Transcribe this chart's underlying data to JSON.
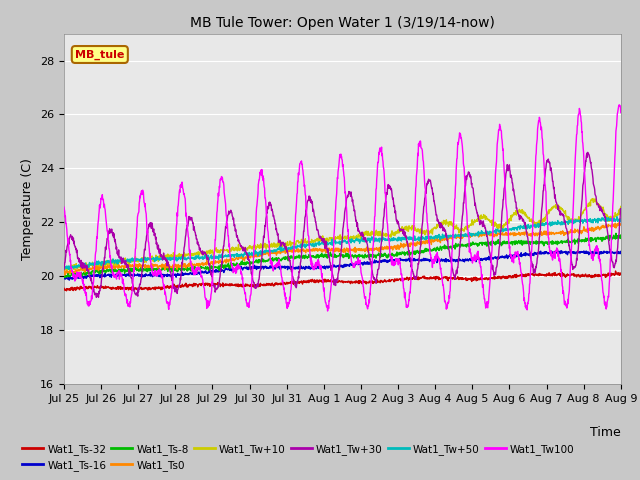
{
  "title": "MB Tule Tower: Open Water 1 (3/19/14-now)",
  "xlabel": "Time",
  "ylabel": "Temperature (C)",
  "ylim": [
    16,
    29
  ],
  "yticks": [
    16,
    18,
    20,
    22,
    24,
    26,
    28
  ],
  "legend_label": "MB_tule",
  "fig_facecolor": "#c8c8c8",
  "plot_facecolor": "#e8e8e8",
  "grid_color": "#ffffff",
  "series": {
    "Wat1_Ts-32": {
      "color": "#cc0000"
    },
    "Wat1_Ts-16": {
      "color": "#0000cc"
    },
    "Wat1_Ts-8": {
      "color": "#00bb00"
    },
    "Wat1_Ts0": {
      "color": "#ff8800"
    },
    "Wat1_Tw+10": {
      "color": "#cccc00"
    },
    "Wat1_Tw+30": {
      "color": "#aa00aa"
    },
    "Wat1_Tw+50": {
      "color": "#00bbbb"
    },
    "Wat1_Tw100": {
      "color": "#ff00ff"
    }
  },
  "xtick_labels": [
    "Jul 25",
    "Jul 26",
    "Jul 27",
    "Jul 28",
    "Jul 29",
    "Jul 30",
    "Jul 31",
    "Aug 1",
    "Aug 2",
    "Aug 3",
    "Aug 4",
    "Aug 5",
    "Aug 6",
    "Aug 7",
    "Aug 8",
    "Aug 9"
  ],
  "n_points": 1600
}
